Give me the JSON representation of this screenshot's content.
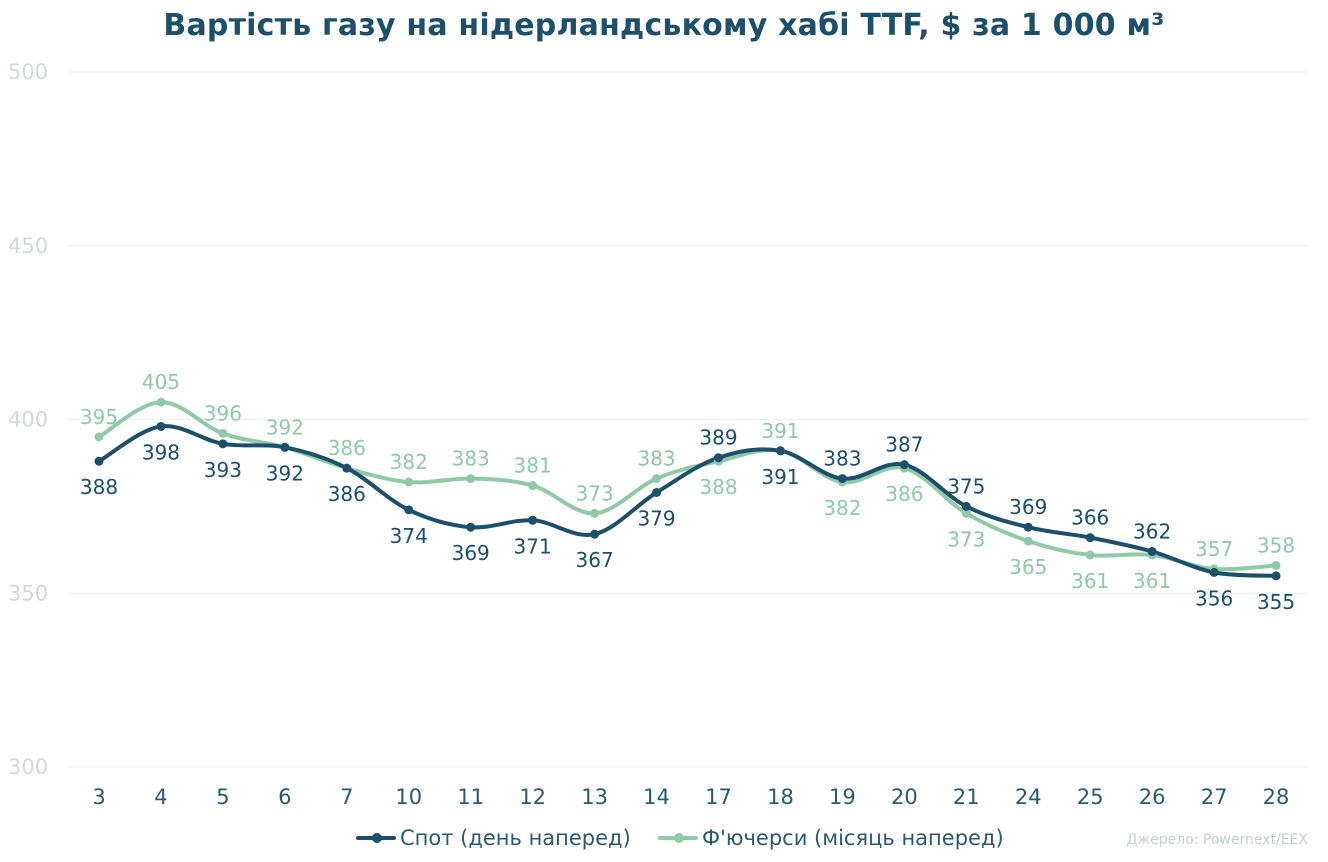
{
  "chart_data": {
    "type": "line",
    "title": "Вартість газу на нідерландському хабі TTF, $ за 1 000 м³",
    "xlabel": "",
    "ylabel": "",
    "categories": [
      "3",
      "4",
      "5",
      "6",
      "7",
      "10",
      "11",
      "12",
      "13",
      "14",
      "17",
      "18",
      "19",
      "20",
      "21",
      "24",
      "25",
      "26",
      "27",
      "28"
    ],
    "ylim": [
      300,
      500
    ],
    "yticks": [
      300,
      350,
      400,
      450,
      500
    ],
    "grid": true,
    "legend_position": "bottom",
    "series": [
      {
        "name": "Спот (день наперед)",
        "color": "#1b4f6b",
        "values": [
          388,
          398,
          393,
          392,
          386,
          374,
          369,
          371,
          367,
          379,
          389,
          391,
          383,
          387,
          375,
          369,
          366,
          362,
          356,
          355
        ]
      },
      {
        "name": "Ф'ючерси (місяць наперед)",
        "color": "#8fcaa6",
        "values": [
          395,
          405,
          396,
          392,
          386,
          382,
          383,
          381,
          373,
          383,
          388,
          391,
          382,
          386,
          373,
          365,
          361,
          361,
          357,
          358
        ]
      }
    ],
    "source": "Джерело: Powernext/EEX"
  }
}
